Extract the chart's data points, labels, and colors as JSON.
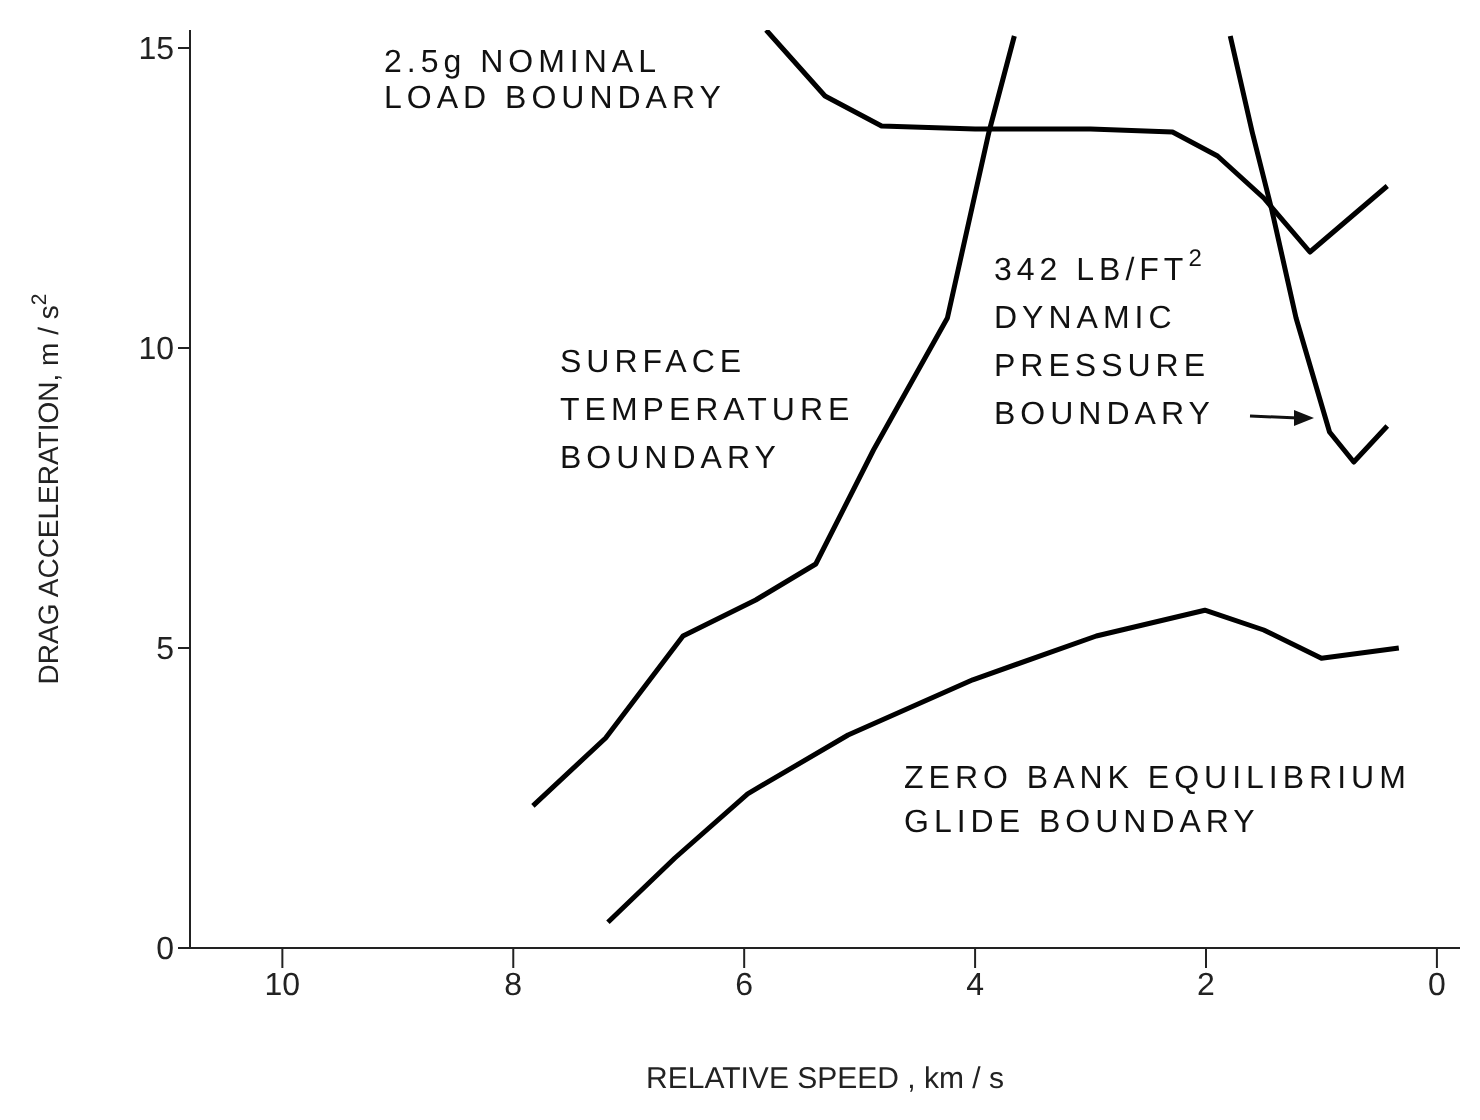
{
  "chart_data": {
    "type": "line",
    "xlabel": "RELATIVE SPEED , km / s",
    "ylabel": "DRAG ACCELERATION, m / s$^{2}$",
    "xlim": [
      10.8,
      -0.2
    ],
    "xticks": [
      10,
      8,
      6,
      4,
      2,
      0
    ],
    "ylim": [
      0,
      15.3
    ],
    "yticks": [
      0,
      5,
      10,
      15
    ],
    "grid": false,
    "legend": false,
    "marker": "none",
    "line_style": "solid",
    "series": [
      {
        "color": "#000000",
        "x": [
          5.81,
          5.3,
          4.81,
          4.0,
          3.0,
          2.29,
          1.9,
          1.5,
          1.1,
          0.43
        ],
        "values": [
          15.3,
          14.2,
          13.7,
          13.65,
          13.65,
          13.6,
          13.2,
          12.5,
          11.6,
          12.7
        ]
      },
      {
        "color": "#000000",
        "x": [
          7.83,
          7.2,
          6.53,
          5.9,
          5.38,
          4.88,
          4.24,
          3.88,
          3.66
        ],
        "values": [
          2.37,
          3.5,
          5.2,
          5.8,
          6.4,
          8.3,
          10.5,
          13.6,
          15.2
        ]
      },
      {
        "color": "#000000",
        "x": [
          1.79,
          1.6,
          1.43,
          1.22,
          0.93,
          0.72,
          0.43
        ],
        "values": [
          15.2,
          13.6,
          12.3,
          10.5,
          8.6,
          8.1,
          8.7
        ]
      },
      {
        "color": "#000000",
        "x": [
          7.18,
          6.6,
          5.97,
          5.1,
          4.02,
          2.95,
          2.01,
          1.5,
          1.0,
          0.33
        ],
        "values": [
          0.43,
          1.5,
          2.57,
          3.55,
          4.47,
          5.2,
          5.63,
          5.3,
          4.83,
          5.0
        ]
      }
    ],
    "annotations": [
      "2.5g NOMINAL\nLOAD BOUNDARY",
      "SURFACE\nTEMPERATURE\nBOUNDARY",
      "342 LB/FT$^{2}$\nDYNAMIC\nPRESSURE\nBOUNDARY",
      "ZERO BANK EQUILIBRIUM\nGLIDE BOUNDARY"
    ]
  }
}
